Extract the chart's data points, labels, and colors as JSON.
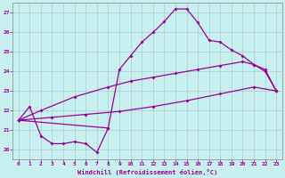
{
  "xlabel": "Windchill (Refroidissement éolien,°C)",
  "bg_color": "#c8f0f0",
  "line_color": "#990099",
  "grid_color": "#aacccc",
  "axis_color": "#888888",
  "xlim": [
    -0.5,
    23.5
  ],
  "ylim": [
    19.5,
    27.5
  ],
  "xticks": [
    0,
    1,
    2,
    3,
    4,
    5,
    6,
    7,
    8,
    9,
    10,
    11,
    12,
    13,
    14,
    15,
    16,
    17,
    18,
    19,
    20,
    21,
    22,
    23
  ],
  "yticks": [
    20,
    21,
    22,
    23,
    24,
    25,
    26,
    27
  ],
  "curve1_x": [
    0,
    1,
    2,
    3,
    4,
    5,
    6,
    7,
    8
  ],
  "curve1_y": [
    21.5,
    22.2,
    20.7,
    20.3,
    20.3,
    20.4,
    20.3,
    19.85,
    21.1
  ],
  "curve2_x": [
    0,
    8,
    9,
    10,
    11,
    12,
    13,
    14,
    15,
    16,
    17,
    18,
    19,
    20,
    21,
    22,
    23
  ],
  "curve2_y": [
    21.5,
    21.1,
    24.1,
    24.8,
    25.5,
    26.0,
    26.55,
    27.2,
    27.2,
    26.5,
    25.6,
    25.5,
    25.1,
    24.8,
    24.35,
    24.0,
    23.0
  ],
  "curve3_x": [
    0,
    2,
    5,
    8,
    10,
    12,
    14,
    16,
    18,
    20,
    21,
    22,
    23
  ],
  "curve3_y": [
    21.5,
    22.0,
    22.7,
    23.2,
    23.5,
    23.7,
    23.9,
    24.1,
    24.3,
    24.5,
    24.35,
    24.1,
    23.0
  ],
  "curve4_x": [
    0,
    3,
    6,
    9,
    12,
    15,
    18,
    21,
    23
  ],
  "curve4_y": [
    21.5,
    21.65,
    21.8,
    21.95,
    22.2,
    22.5,
    22.85,
    23.2,
    23.0
  ]
}
